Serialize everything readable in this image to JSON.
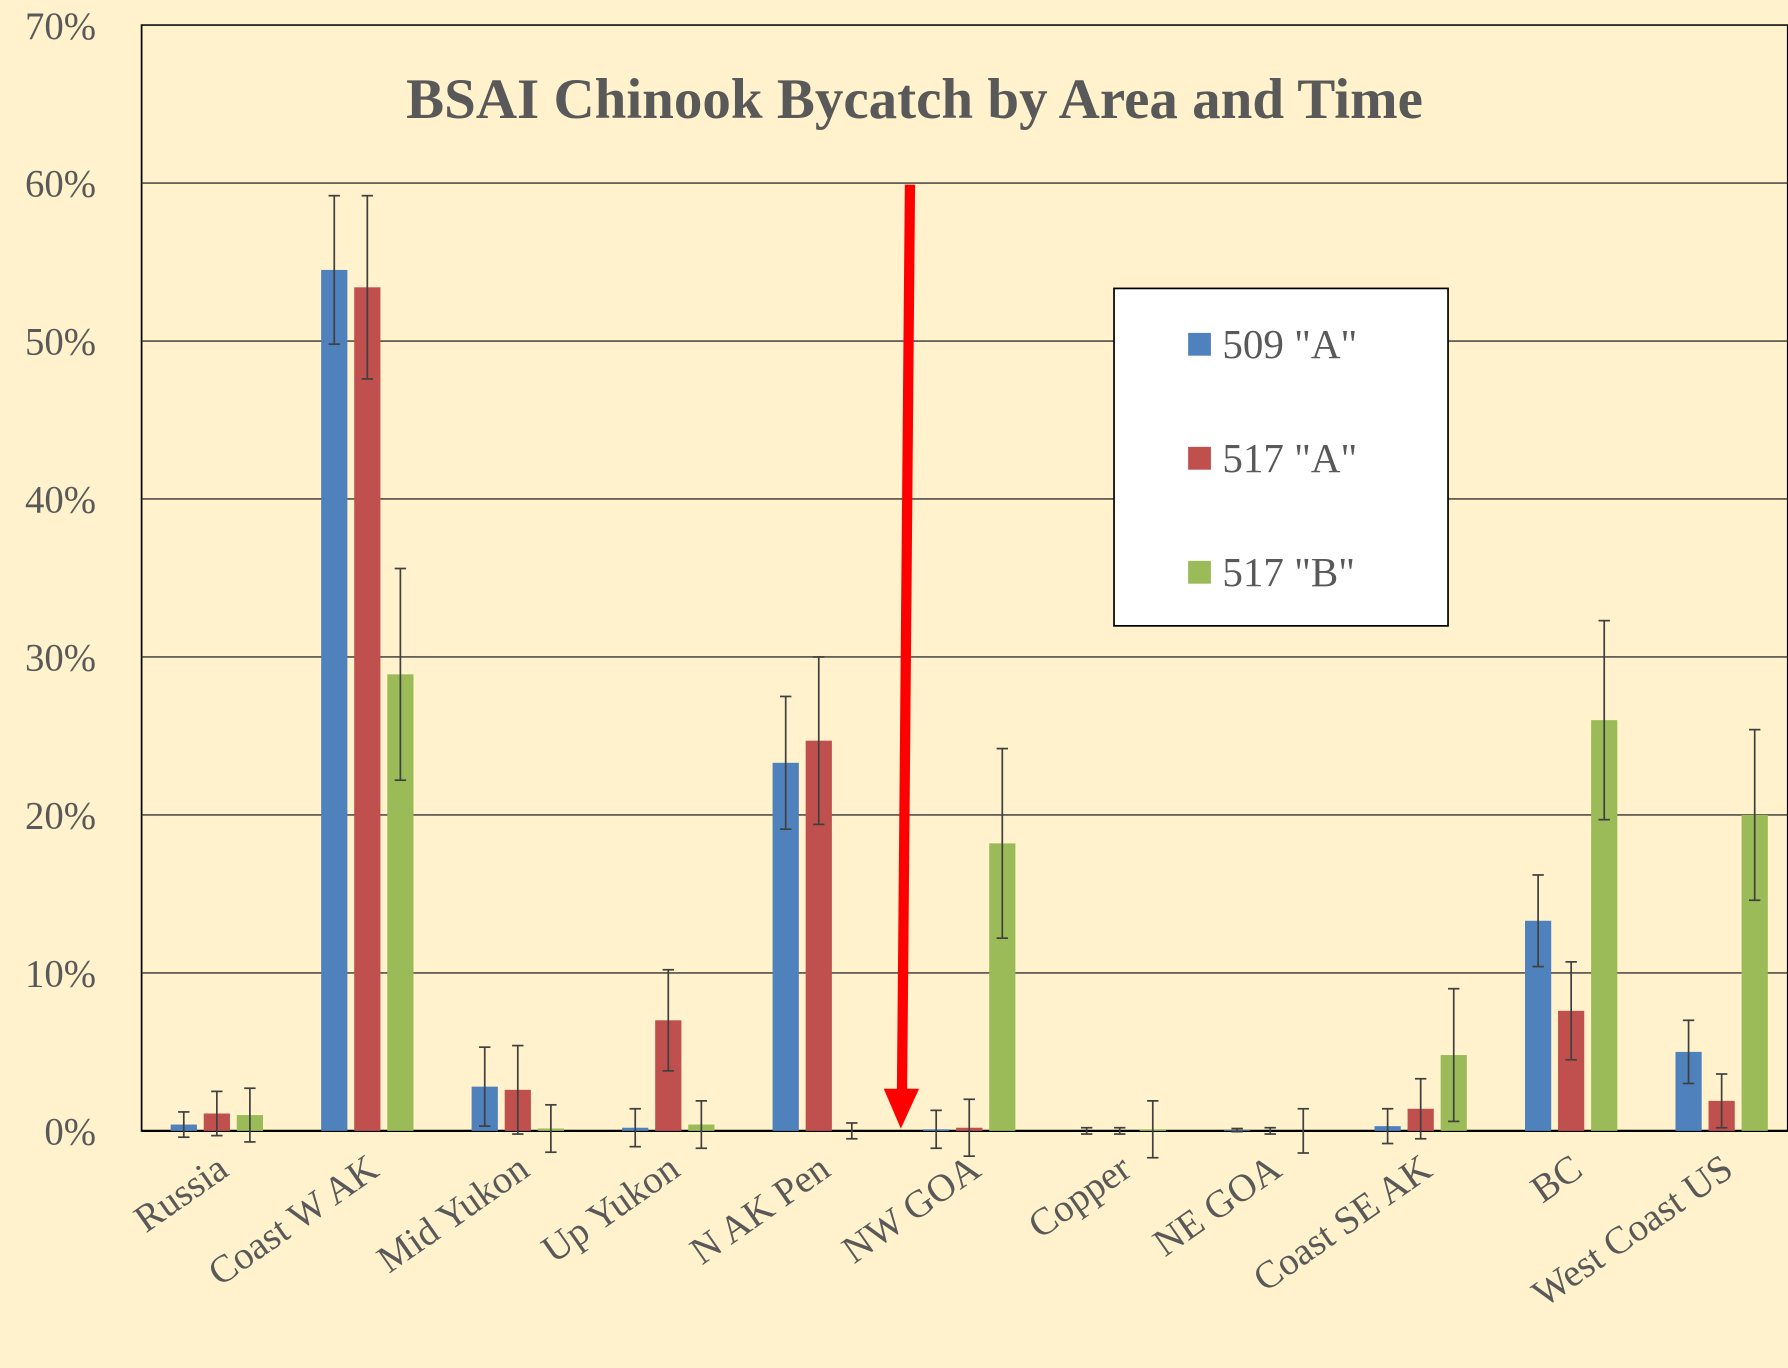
{
  "chart_data": {
    "type": "bar",
    "title": "BSAI Chinook Bycatch by Area and Time",
    "categories": [
      "Russia",
      "Coast W AK",
      "Mid Yukon",
      "Up Yukon",
      "N AK Pen",
      "NW GOA",
      "Copper",
      "NE GOA",
      "Coast SE AK",
      "BC",
      "West Coast US"
    ],
    "series": [
      {
        "name": "509 \"A\"",
        "color": "#4f81bd",
        "values": [
          0.4,
          54.5,
          2.8,
          0.2,
          23.3,
          0.1,
          0,
          0.05,
          0.3,
          13.3,
          5.0
        ],
        "errors": [
          0.8,
          4.7,
          2.5,
          1.2,
          4.2,
          1.2,
          0.2,
          0.1,
          1.1,
          2.9,
          2.0
        ]
      },
      {
        "name": "517 \"A\"",
        "color": "#c0504d",
        "values": [
          1.1,
          53.4,
          2.6,
          7.0,
          24.7,
          0.2,
          0,
          0,
          1.4,
          7.6,
          1.9
        ],
        "errors": [
          1.4,
          5.8,
          2.8,
          3.2,
          5.3,
          1.8,
          0.2,
          0.2,
          1.9,
          3.1,
          1.7
        ]
      },
      {
        "name": "517 \"B\"",
        "color": "#9bbb59",
        "values": [
          1.0,
          28.9,
          0.15,
          0.4,
          0,
          18.2,
          0.1,
          0,
          4.8,
          26.0,
          20.0
        ],
        "errors": [
          1.7,
          6.7,
          1.5,
          1.5,
          0.5,
          6.0,
          1.8,
          1.4,
          4.2,
          6.3,
          5.4
        ]
      }
    ],
    "ylim": [
      0,
      70
    ],
    "yticks": [
      {
        "value": 0,
        "label": "0%"
      },
      {
        "value": 10,
        "label": "10%"
      },
      {
        "value": 20,
        "label": "20%"
      },
      {
        "value": 30,
        "label": "30%"
      },
      {
        "value": 40,
        "label": "40%"
      },
      {
        "value": 50,
        "label": "50%"
      },
      {
        "value": 60,
        "label": "60%"
      },
      {
        "value": 70,
        "label": "70%"
      }
    ],
    "grid": true
  }
}
